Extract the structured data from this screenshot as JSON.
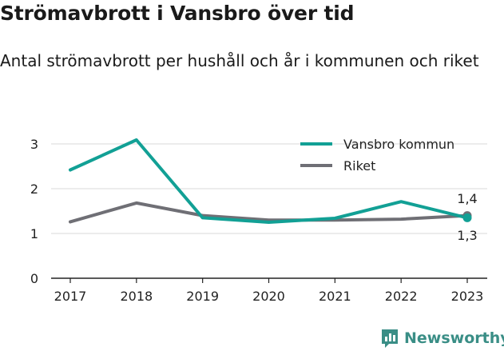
{
  "title": "Strömavbrott i Vansbro över tid",
  "subtitle": "Antal strömavbrott per hushåll och år i kommunen och riket",
  "logo_text": "Newsworthy",
  "colors": {
    "vansbro": "#12a095",
    "riket": "#6f6f75",
    "grid": "#d9d9d9",
    "axis": "#222222"
  },
  "chart_data": {
    "type": "line",
    "x": [
      "2017",
      "2018",
      "2019",
      "2020",
      "2021",
      "2022",
      "2023"
    ],
    "ylim": [
      0,
      3.4
    ],
    "yticks": [
      "0",
      "1",
      "2",
      "3"
    ],
    "legend_position": "top-right",
    "series": [
      {
        "name": "Vansbro kommun",
        "key": "vansbro",
        "values": [
          2.42,
          3.09,
          1.35,
          1.25,
          1.34,
          1.71,
          1.35
        ]
      },
      {
        "name": "Riket",
        "key": "riket",
        "values": [
          1.26,
          1.68,
          1.4,
          1.3,
          1.3,
          1.32,
          1.4
        ]
      }
    ],
    "end_labels": {
      "upper": "1,4",
      "lower": "1,3"
    }
  }
}
